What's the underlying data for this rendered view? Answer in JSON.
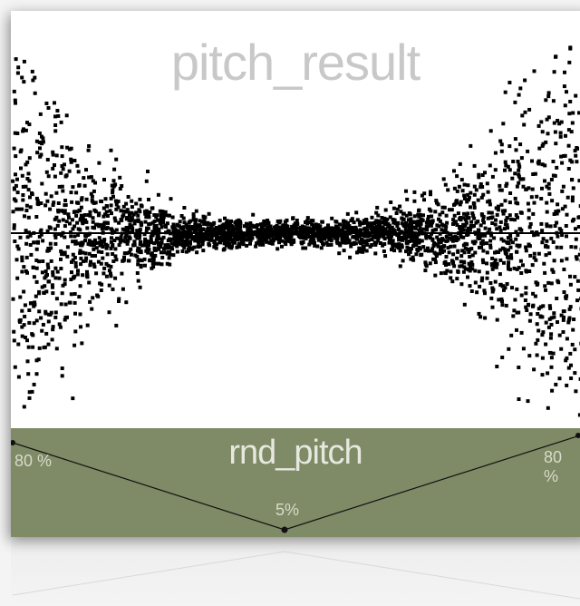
{
  "plot": {
    "title": "pitch_result",
    "point_color": "#000000",
    "background_color": "#ffffff"
  },
  "panel": {
    "title": "rnd_pitch",
    "background_color": "#7f8a66",
    "breakpoints": [
      {
        "label": "80 %",
        "value": 80
      },
      {
        "label": "5%",
        "value": 5
      },
      {
        "label": "80 %",
        "value": 80
      }
    ]
  },
  "chart_data": {
    "type": "scatter",
    "title": "pitch_result",
    "grid": false,
    "description_series": [
      {
        "name": "",
        "note_position": "x",
        "spread_edges": "wide",
        "spread_center": "narrow"
      }
    ]
  }
}
